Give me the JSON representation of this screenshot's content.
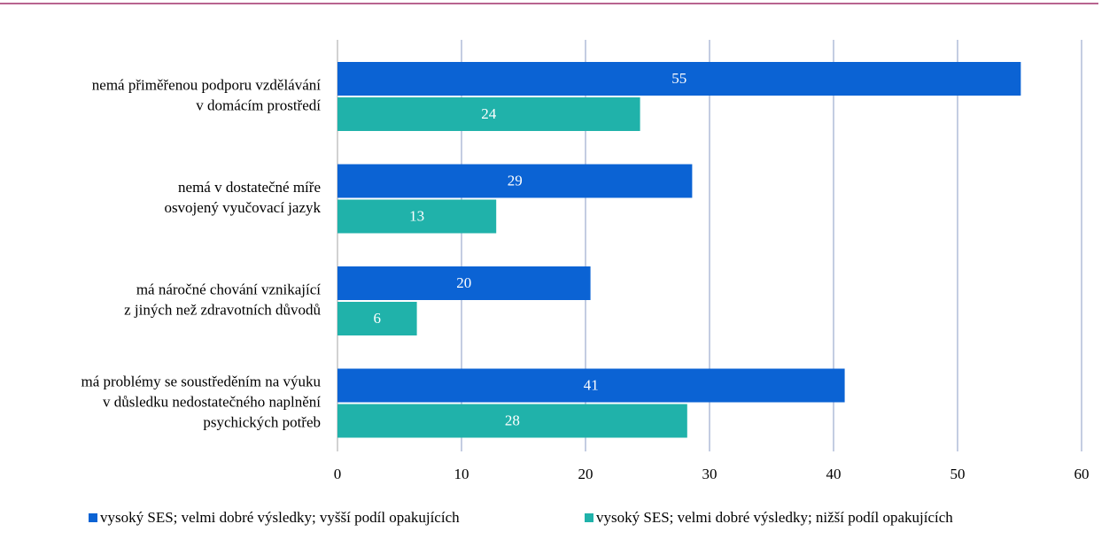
{
  "chart_data": {
    "type": "hbar",
    "categories": [
      [
        "nemá přiměřenou podporu vzdělávání",
        "v domácím prostředí"
      ],
      [
        "nemá v dostatečné míře",
        "osvojený vyučovací jazyk"
      ],
      [
        "má náročné chování vznikající",
        "z jiných než zdravotních důvodů"
      ],
      [
        "má problémy se soustředěním na výuku",
        "v důsledku nedostatečného naplnění",
        "psychických potřeb"
      ]
    ],
    "series": [
      {
        "name": "vysoký SES; velmi dobré výsledky; vyšší podíl opakujících",
        "color": "#0b63d4",
        "values": [
          55.1,
          28.6,
          20.4,
          40.9
        ],
        "value_labels": [
          "55",
          "29",
          "20",
          "41"
        ]
      },
      {
        "name": "vysoký SES; velmi dobré výsledky; nižší podíl opakujících",
        "color": "#20b2aa",
        "values": [
          24.4,
          12.8,
          6.4,
          28.2
        ],
        "value_labels": [
          "24",
          "13",
          "6",
          "28"
        ]
      }
    ],
    "xlim": [
      0,
      60
    ],
    "xticks": [
      0,
      10,
      20,
      30,
      40,
      50,
      60
    ],
    "grid": true,
    "legend": "bottom"
  }
}
